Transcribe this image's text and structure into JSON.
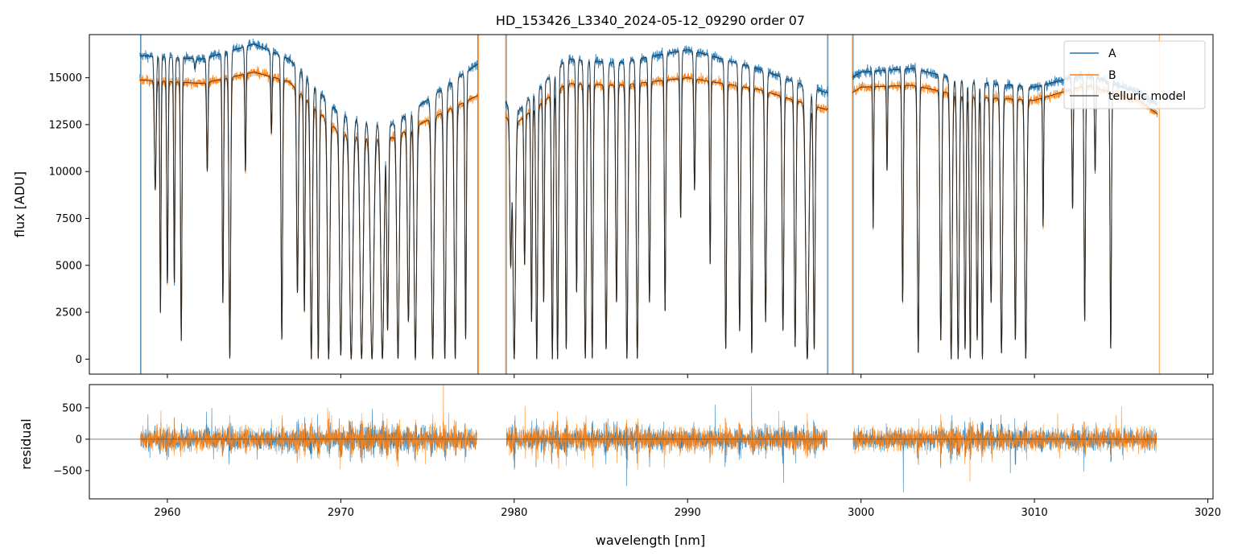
{
  "chart_data": [
    {
      "type": "line",
      "title": "HD_153426_L3340_2024-05-12_09290  order 07",
      "xlabel": "",
      "ylabel": "flux [ADU]",
      "xlim": [
        2955.5,
        3020.3
      ],
      "ylim": [
        -800,
        17300
      ],
      "yticks": [
        0,
        2500,
        5000,
        7500,
        10000,
        12500,
        15000
      ],
      "ytick_labels": [
        "0",
        "2500",
        "5000",
        "7500",
        "10000",
        "12500",
        "15000"
      ],
      "xticks": [
        2960,
        2970,
        2980,
        2990,
        3000,
        3010,
        3020
      ],
      "legend": {
        "position": "top-right",
        "entries": [
          "A",
          "B",
          "telluric model"
        ]
      },
      "segments": [
        [
          2958.4,
          2977.9
        ],
        [
          2979.5,
          2998.1
        ],
        [
          2999.5,
          3017.1
        ]
      ],
      "series": [
        {
          "name": "A",
          "color": "#1f77b4",
          "continuum": [
            [
              2958,
              16200
            ],
            [
              2962,
              16000
            ],
            [
              2965,
              16800
            ],
            [
              2967,
              16000
            ],
            [
              2970,
              13000
            ],
            [
              2973,
              12500
            ],
            [
              2976,
              14500
            ],
            [
              2978,
              15800
            ],
            [
              2980,
              13000
            ],
            [
              2983,
              16000
            ],
            [
              2986,
              15800
            ],
            [
              2990,
              16500
            ],
            [
              2994,
              15500
            ],
            [
              2998,
              14200
            ],
            [
              3000,
              15300
            ],
            [
              3003,
              15500
            ],
            [
              3006,
              14800
            ],
            [
              3010,
              14500
            ],
            [
              3013,
              15200
            ],
            [
              3016,
              14200
            ],
            [
              3017.2,
              13500
            ]
          ]
        },
        {
          "name": "B",
          "color": "#ff7f0e",
          "continuum": [
            [
              2958,
              14900
            ],
            [
              2962,
              14700
            ],
            [
              2965,
              15300
            ],
            [
              2967,
              14800
            ],
            [
              2970,
              12000
            ],
            [
              2973,
              11800
            ],
            [
              2976,
              13200
            ],
            [
              2978,
              14100
            ],
            [
              2980,
              12500
            ],
            [
              2983,
              14700
            ],
            [
              2986,
              14600
            ],
            [
              2990,
              15000
            ],
            [
              2994,
              14400
            ],
            [
              2998,
              13300
            ],
            [
              3000,
              14500
            ],
            [
              3003,
              14600
            ],
            [
              3006,
              14000
            ],
            [
              3010,
              13800
            ],
            [
              3013,
              14600
            ],
            [
              3016,
              13800
            ],
            [
              3017.2,
              13000
            ]
          ]
        },
        {
          "name": "telluric model",
          "color": "#222222"
        }
      ],
      "absorption_lines": [
        [
          2959.3,
          9000,
          0.1
        ],
        [
          2959.6,
          2500,
          0.07
        ],
        [
          2960.0,
          4000,
          0.08
        ],
        [
          2960.4,
          4000,
          0.07
        ],
        [
          2960.8,
          1000,
          0.08
        ],
        [
          2961.6,
          15500,
          0.08
        ],
        [
          2962.3,
          10000,
          0.08
        ],
        [
          2963.2,
          3000,
          0.08
        ],
        [
          2963.6,
          0,
          0.1
        ],
        [
          2964.5,
          10000,
          0.07
        ],
        [
          2966.0,
          12000,
          0.07
        ],
        [
          2966.6,
          1000,
          0.09
        ],
        [
          2967.5,
          3500,
          0.1
        ],
        [
          2967.9,
          2500,
          0.08
        ],
        [
          2968.3,
          0,
          0.12
        ],
        [
          2968.7,
          0,
          0.1
        ],
        [
          2969.3,
          0,
          0.14
        ],
        [
          2970.0,
          200,
          0.14
        ],
        [
          2970.6,
          0,
          0.18
        ],
        [
          2971.2,
          0,
          0.18
        ],
        [
          2971.8,
          0,
          0.2
        ],
        [
          2972.4,
          0,
          0.18
        ],
        [
          2972.7,
          1500,
          0.1
        ],
        [
          2973.3,
          0,
          0.14
        ],
        [
          2973.9,
          2000,
          0.12
        ],
        [
          2974.3,
          0,
          0.14
        ],
        [
          2975.3,
          0,
          0.14
        ],
        [
          2976.0,
          0,
          0.12
        ],
        [
          2976.6,
          0,
          0.12
        ],
        [
          2977.2,
          1000,
          0.08
        ],
        [
          2979.8,
          5000,
          0.1
        ],
        [
          2980.0,
          0,
          0.14
        ],
        [
          2980.6,
          5000,
          0.08
        ],
        [
          2981.0,
          2000,
          0.08
        ],
        [
          2981.3,
          0,
          0.1
        ],
        [
          2981.7,
          3000,
          0.08
        ],
        [
          2982.2,
          0,
          0.1
        ],
        [
          2982.5,
          0,
          0.1
        ],
        [
          2983.0,
          500,
          0.1
        ],
        [
          2983.6,
          3500,
          0.08
        ],
        [
          2984.1,
          0,
          0.12
        ],
        [
          2984.5,
          0,
          0.1
        ],
        [
          2985.3,
          500,
          0.12
        ],
        [
          2985.9,
          3000,
          0.1
        ],
        [
          2986.5,
          0,
          0.12
        ],
        [
          2987.1,
          0,
          0.12
        ],
        [
          2987.8,
          3000,
          0.1
        ],
        [
          2988.7,
          2500,
          0.08
        ],
        [
          2989.6,
          7500,
          0.08
        ],
        [
          2990.4,
          9000,
          0.08
        ],
        [
          2991.3,
          5000,
          0.07
        ],
        [
          2992.2,
          500,
          0.1
        ],
        [
          2993.0,
          1500,
          0.1
        ],
        [
          2993.7,
          300,
          0.1
        ],
        [
          2994.5,
          2000,
          0.1
        ],
        [
          2995.5,
          1500,
          0.1
        ],
        [
          2996.2,
          600,
          0.1
        ],
        [
          2996.9,
          0,
          0.18
        ],
        [
          2997.3,
          500,
          0.1
        ],
        [
          3000.7,
          7000,
          0.06
        ],
        [
          3001.5,
          10000,
          0.06
        ],
        [
          3002.4,
          3000,
          0.08
        ],
        [
          3003.3,
          300,
          0.1
        ],
        [
          3004.6,
          1000,
          0.1
        ],
        [
          3005.2,
          0,
          0.12
        ],
        [
          3005.6,
          0,
          0.12
        ],
        [
          3006.0,
          500,
          0.1
        ],
        [
          3006.3,
          0,
          0.1
        ],
        [
          3006.7,
          1000,
          0.1
        ],
        [
          3007.0,
          0,
          0.1
        ],
        [
          3007.5,
          3000,
          0.1
        ],
        [
          3008.1,
          300,
          0.12
        ],
        [
          3008.9,
          1000,
          0.1
        ],
        [
          3009.5,
          0,
          0.12
        ],
        [
          3010.5,
          7000,
          0.06
        ],
        [
          3012.2,
          8000,
          0.07
        ],
        [
          3012.9,
          2000,
          0.08
        ],
        [
          3013.5,
          10000,
          0.07
        ],
        [
          3014.4,
          500,
          0.08
        ]
      ],
      "spikes": [
        {
          "x": 2958.5,
          "color": "#ff7f0e"
        },
        {
          "x": 2958.45,
          "color": "#1f77b4"
        },
        {
          "x": 2977.9,
          "color": "#1f77b4"
        },
        {
          "x": 2977.95,
          "color": "#ff7f0e"
        },
        {
          "x": 2979.5,
          "color": "#ff7f0e"
        },
        {
          "x": 2979.55,
          "color": "#1f77b4"
        },
        {
          "x": 2998.1,
          "color": "#1f77b4"
        },
        {
          "x": 2998.05,
          "color": "#ff7f0e"
        },
        {
          "x": 2999.5,
          "color": "#ff7f0e"
        },
        {
          "x": 2999.55,
          "color": "#1f77b4"
        },
        {
          "x": 3017.2,
          "color": "#ff7f0e"
        }
      ]
    },
    {
      "type": "line",
      "title": "",
      "xlabel": "wavelength [nm]",
      "ylabel": "residual",
      "xlim": [
        2955.5,
        3020.3
      ],
      "ylim": [
        -950,
        870
      ],
      "yticks": [
        -500,
        0,
        500
      ],
      "ytick_labels": [
        "−500",
        "0",
        "500"
      ],
      "xticks": [
        2960,
        2970,
        2980,
        2990,
        3000,
        3010,
        3020
      ],
      "xtick_labels": [
        "2960",
        "2970",
        "2980",
        "2990",
        "3000",
        "3010",
        "3020"
      ],
      "zero_line": true,
      "series": [
        {
          "name": "A",
          "color": "#1f77b4",
          "noise_amplitude": 220
        },
        {
          "name": "B",
          "color": "#ff7f0e",
          "noise_amplitude": 230
        }
      ]
    }
  ]
}
